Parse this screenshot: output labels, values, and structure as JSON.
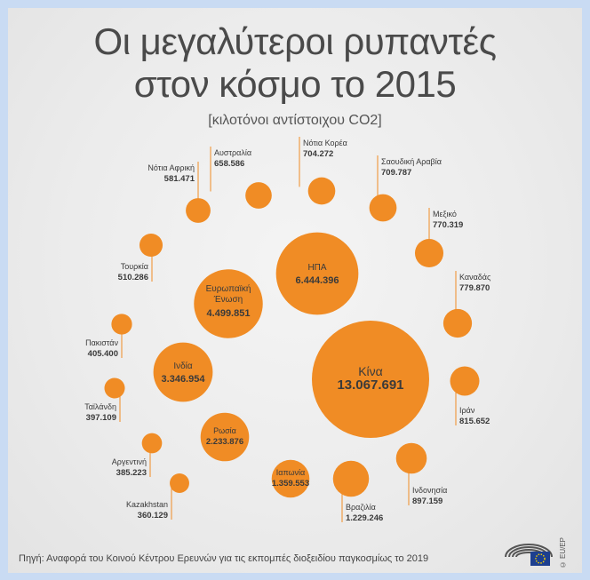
{
  "header": {
    "title_line1": "Οι μεγαλύτεροι ρυπαντές",
    "title_line2": "στον κόσμο το 2015",
    "subtitle": "[κιλοτόνοι αντίστοιχου CO2]"
  },
  "footer": {
    "source": "Πηγή: Αναφορά του Κοινού Κέντρου Ερευνών για τις εκπομπές διοξειδίου παγκοσμίως το 2019",
    "copyright": "© EU/EP"
  },
  "colors": {
    "bubble": "#f08c25",
    "text": "#3a3a3a"
  },
  "chart_data": {
    "type": "bubble",
    "title": "Οι μεγαλύτεροι ρυπαντές στον κόσμο το 2015",
    "unit": "[κιλοτόνοι αντίστοιχου CO2]",
    "items": [
      {
        "name": "Κίνα",
        "label": "13.067.691",
        "value": 13067691
      },
      {
        "name": "ΗΠΑ",
        "label": "6.444.396",
        "value": 6444396
      },
      {
        "name": "Ευρωπαϊκή Ένωση",
        "label": "4.499.851",
        "value": 4499851
      },
      {
        "name": "Ινδία",
        "label": "3.346.954",
        "value": 3346954
      },
      {
        "name": "Ρωσία",
        "label": "2.233.876",
        "value": 2233876
      },
      {
        "name": "Ιαπωνία",
        "label": "1.359.553",
        "value": 1359553
      },
      {
        "name": "Βραζιλία",
        "label": "1.229.246",
        "value": 1229246
      },
      {
        "name": "Ινδονησία",
        "label": "897.159",
        "value": 897159
      },
      {
        "name": "Ιράν",
        "label": "815.652",
        "value": 815652
      },
      {
        "name": "Καναδάς",
        "label": "779.870",
        "value": 779870
      },
      {
        "name": "Μεξικό",
        "label": "770.319",
        "value": 770319
      },
      {
        "name": "Σαουδική Αραβία",
        "label": "709.787",
        "value": 709787
      },
      {
        "name": "Νότια Κορέα",
        "label": "704.272",
        "value": 704272
      },
      {
        "name": "Αυστραλία",
        "label": "658.586",
        "value": 658586
      },
      {
        "name": "Νότια Αφρική",
        "label": "581.471",
        "value": 581471
      },
      {
        "name": "Τουρκία",
        "label": "510.286",
        "value": 510286
      },
      {
        "name": "Πακιστάν",
        "label": "405.400",
        "value": 405400
      },
      {
        "name": "Ταϊλάνδη",
        "label": "397.109",
        "value": 397109
      },
      {
        "name": "Αργεντινή",
        "label": "385.223",
        "value": 385223
      },
      {
        "name": "Kazakhstan",
        "label": "360.129",
        "value": 360129
      }
    ]
  }
}
